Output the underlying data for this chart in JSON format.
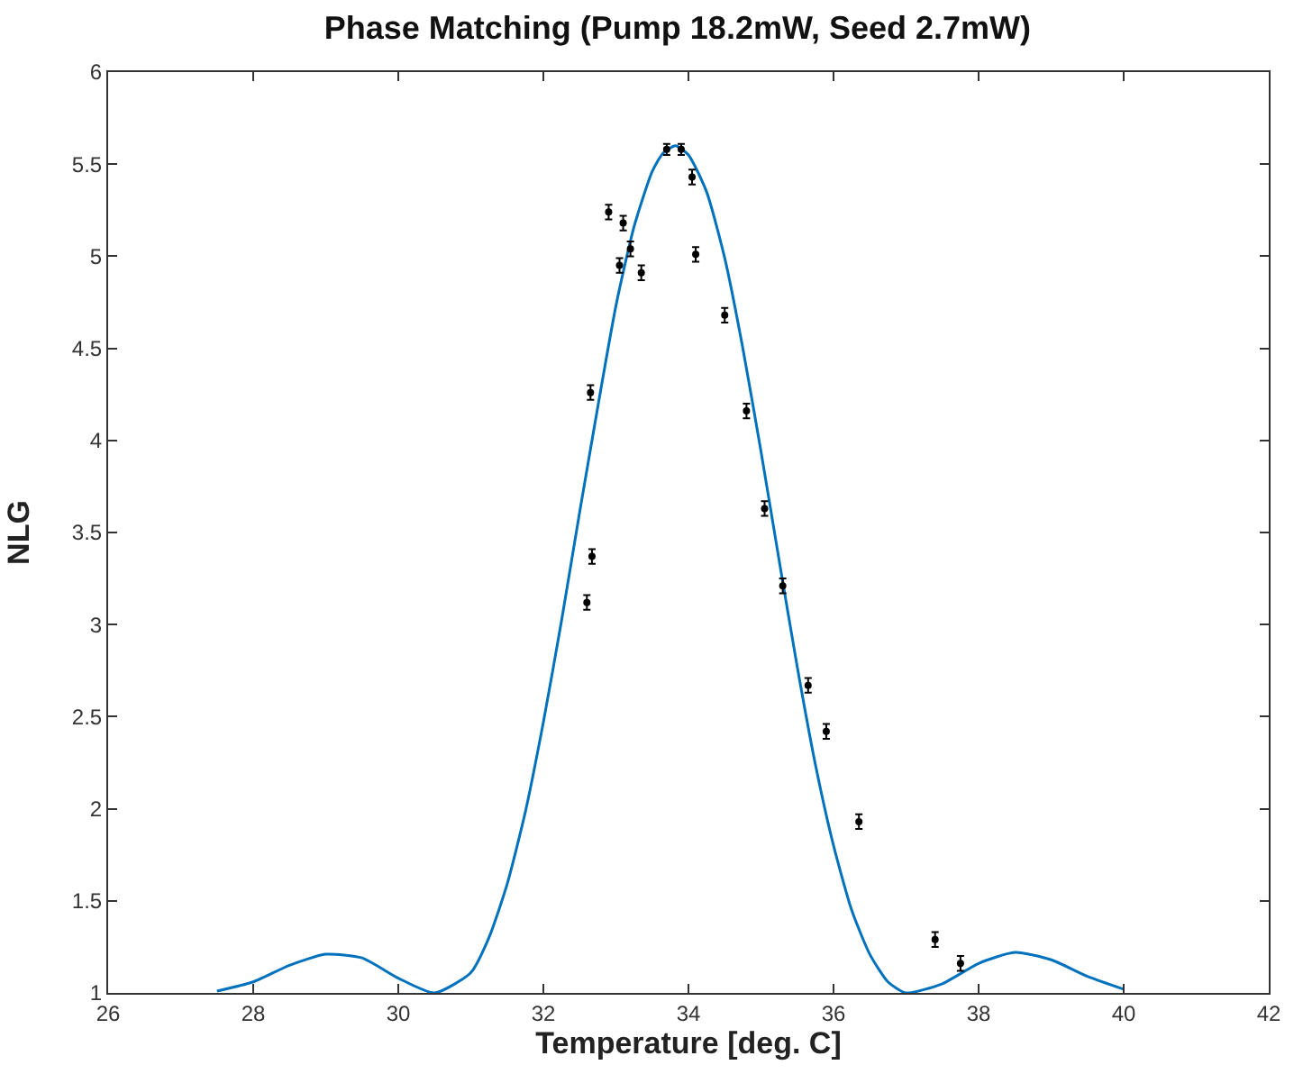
{
  "chart_data": {
    "type": "scatter",
    "title": "Phase Matching (Pump 18.2mW, Seed 2.7mW)",
    "xlabel": "Temperature [deg. C]",
    "ylabel": "NLG",
    "xlim": [
      26,
      42
    ],
    "xticks": [
      26,
      28,
      30,
      32,
      34,
      36,
      38,
      40,
      42
    ],
    "ylim": [
      1,
      6
    ],
    "yticks": [
      1,
      1.5,
      2,
      2.5,
      3,
      3.5,
      4,
      4.5,
      5,
      5.5,
      6
    ],
    "grid": false,
    "series": [
      {
        "type": "line",
        "color": "#0072bd",
        "marker": "none",
        "line_style": "solid",
        "x": [
          27.5,
          28,
          28.5,
          29,
          29.5,
          30,
          30.5,
          31,
          31.25,
          31.5,
          31.75,
          32,
          32.25,
          32.5,
          33,
          33.25,
          33.5,
          33.65,
          33.82,
          34,
          34.25,
          34.5,
          34.75,
          35,
          35.25,
          35.5,
          35.75,
          36,
          36.25,
          36.5,
          36.75,
          37,
          37.5,
          38,
          38.5,
          39,
          39.5,
          40
        ],
        "values": [
          1.01,
          1.06,
          1.15,
          1.21,
          1.19,
          1.08,
          1.0,
          1.11,
          1.3,
          1.59,
          1.98,
          2.47,
          3.02,
          3.61,
          4.73,
          5.16,
          5.46,
          5.56,
          5.6,
          5.55,
          5.35,
          4.99,
          4.5,
          3.94,
          3.35,
          2.77,
          2.24,
          1.8,
          1.45,
          1.21,
          1.06,
          1.0,
          1.05,
          1.16,
          1.22,
          1.18,
          1.09,
          1.02
        ]
      },
      {
        "color": "#000000",
        "marker": "circle",
        "x": [
          32.6,
          32.67,
          32.65,
          32.9,
          33.05,
          33.1,
          33.2,
          33.35,
          33.7,
          33.9,
          34.05,
          34.1,
          34.5,
          34.8,
          35.05,
          35.3,
          35.65,
          35.9,
          36.35,
          37.4,
          37.75
        ],
        "values": [
          3.12,
          3.37,
          4.26,
          5.24,
          4.95,
          5.18,
          5.04,
          4.91,
          5.58,
          5.58,
          5.43,
          5.01,
          4.68,
          4.16,
          3.63,
          3.21,
          2.67,
          2.42,
          1.93,
          1.29,
          1.16
        ],
        "errors": [
          0.04,
          0.04,
          0.04,
          0.04,
          0.04,
          0.04,
          0.04,
          0.04,
          0.03,
          0.03,
          0.04,
          0.04,
          0.04,
          0.04,
          0.04,
          0.04,
          0.04,
          0.04,
          0.04,
          0.04,
          0.04
        ]
      }
    ]
  }
}
